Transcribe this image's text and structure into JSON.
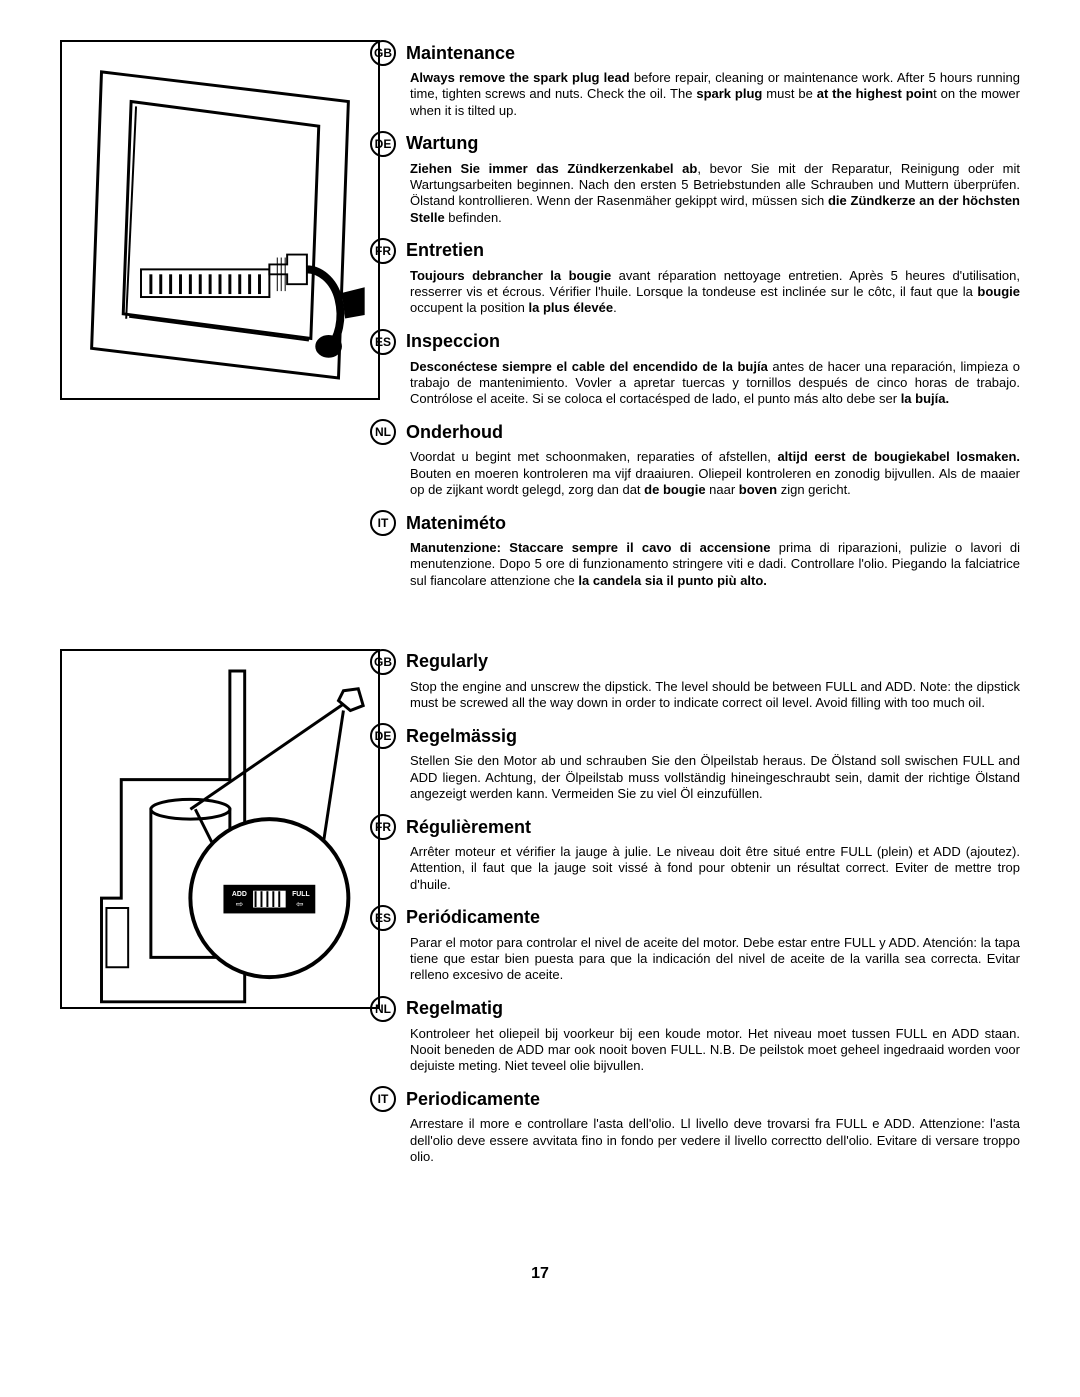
{
  "page_number": "17",
  "blocks": [
    {
      "figure": "sparkplug",
      "sections": [
        {
          "lang": "GB",
          "title": "Maintenance",
          "body": "<b>Always remove the spark plug lead</b> before repair, cleaning or maintenance work. After 5 hours running time, tighten screws and nuts. Check the oil. The <b>spark plug</b> must be <b>at the highest poin</b>t on the mower when it is tilted up."
        },
        {
          "lang": "DE",
          "title": "Wartung",
          "body": "<b>Ziehen Sie immer das Zündkerzenkabel ab</b>, bevor Sie mit der Reparatur, Reinigung oder mit Wartungsarbeiten beginnen. Nach den ersten 5 Betriebstunden alle Schrauben und Muttern überprüfen. Ölstand kontrollieren. Wenn der Rasenmäher gekippt wird, müssen sich <b>die Zündkerze an der höchsten Stelle</b> befinden."
        },
        {
          "lang": "FR",
          "title": "Entretien",
          "body": "<b>Toujours debrancher la bougie</b> avant réparation nettoyage entretien. Après 5 heures d'utilisation, resserrer vis et écrous. Vérifier l'huile. Lorsque la tondeuse est inclinée sur le côtc, il faut que la <b>bougie</b> occupent la position <b>la plus élevée</b>."
        },
        {
          "lang": "ES",
          "title": "Inspeccion",
          "body": "<b>Desconéctese siempre el cable del encendido de la bujía</b> antes de hacer una reparación, limpieza o trabajo de mantenimiento. Vovler a apretar tuercas y tornillos después de cinco horas de trabajo. Contrólose el aceite. Si se coloca el cortacésped de lado, el punto más alto debe ser <b>la bujía.</b>"
        },
        {
          "lang": "NL",
          "title": "Onderhoud",
          "body": "Voordat u begint met schoonmaken, reparaties of afstellen, <b>altijd eerst de bougiekabel losmaken.</b> Bouten en moeren kontroleren ma vijf draaiuren. Oliepeil kontroleren en zonodig bijvullen. Als de maaier op de zijkant wordt gelegd, zorg dan dat <b>de bougie</b> naar <b>boven</b> zign gericht."
        },
        {
          "lang": "IT",
          "title": "Mateniméto",
          "body": "<b>Manutenzione: Staccare sempre il cavo di accensione</b> prima di riparazioni, pulizie o lavori di menutenzione. Dopo 5 ore di funzionamento stringere viti e dadi. Controllare l'olio. Piegando la falciatrice sul fiancolare attenzione che <b>la candela sia il punto più alto.</b>"
        }
      ]
    },
    {
      "figure": "dipstick",
      "sections": [
        {
          "lang": "GB",
          "title": "Regularly",
          "body": "Stop the engine and unscrew the dipstick. The level should be between FULL and ADD. Note: the dipstick must be screwed all the way down in order to indicate correct oil level. Avoid filling with too much oil."
        },
        {
          "lang": "DE",
          "title": "Regelmässig",
          "body": "Stellen Sie den Motor ab und schrauben Sie den Ölpeilstab heraus. De Ölstand soll swischen FULL and ADD liegen. Achtung, der Ölpeilstab muss vollständig hineingeschraubt sein, damit der richtige Ölstand angezeigt werden kann. Vermeiden Sie zu viel Öl einzufüllen."
        },
        {
          "lang": "FR",
          "title": "Régulièrement",
          "body": "Arrêter moteur et vérifier la jauge à julie. Le niveau doit être situé entre FULL (plein) et ADD (ajoutez). Attention, il faut que la jauge soit vissé à fond pour obtenir un résultat correct. Eviter de mettre trop d'huile."
        },
        {
          "lang": "ES",
          "title": "Periódicamente",
          "body": "Parar el motor para controlar el nivel de aceite del motor. Debe estar entre FULL y ADD. Atención: la tapa tiene que estar bien puesta para que la indicación del nivel de aceite de la varilla sea correcta. Evitar relleno excesivo de aceite."
        },
        {
          "lang": "NL",
          "title": "Regelmatig",
          "body": "Kontroleer het oliepeil bij voorkeur bij een koude motor. Het niveau moet tussen FULL en ADD staan. Nooit beneden de ADD mar ook nooit boven FULL. N.B. De peilstok moet geheel ingedraaid worden voor dejuiste meting. Niet teveel olie bijvullen."
        },
        {
          "lang": "IT",
          "title": "Periodicamente",
          "body": "Arrestare il more e controllare l'asta dell'olio. Ll livello deve trovarsi fra FULL e ADD. Attenzione: l'asta dell'olio deve essere avvitata fino in fondo per vedere il livello correctto dell'olio. Evitare di versare troppo olio."
        }
      ]
    }
  ],
  "figures": {
    "sparkplug_svg": "<svg viewBox='0 0 320 360'><g stroke='#000' stroke-width='3' fill='none'><path d='M 40 30 L 290 60 L 280 340 L 30 310 Z'/><path d='M 70 60 L 260 85 L 252 300 L 62 275 Z'/><line x1='75' y1='65' x2='65' y2='280' stroke-width='2'/><line x1='68' y1='278' x2='250' y2='302' stroke-width='2'/><rect x='80' y='230' width='130' height='28' stroke-width='2' fill='#fff'/><line x1='90' y1='235' x2='90' y2='255'/><line x1='100' y1='235' x2='100' y2='255'/><line x1='110' y1='235' x2='110' y2='255'/><line x1='120' y1='235' x2='120' y2='255'/><line x1='130' y1='235' x2='130' y2='255'/><line x1='140' y1='235' x2='140' y2='255'/><line x1='150' y1='235' x2='150' y2='255'/><line x1='160' y1='235' x2='160' y2='255'/><line x1='170' y1='235' x2='170' y2='255'/><line x1='180' y1='235' x2='180' y2='255'/><line x1='190' y1='235' x2='190' y2='255'/><line x1='200' y1='235' x2='200' y2='255'/><path d='M 210 225 l 18 0 l 0 -10 l 20 0 l 0 30 l -20 0 l 0 -10 l -18 0 Z' fill='#fff' stroke-width='2'/><line x1='218' y1='218' x2='218' y2='252' stroke-width='1'/><line x1='222' y1='218' x2='222' y2='252' stroke-width='1'/><line x1='226' y1='218' x2='226' y2='252' stroke-width='1'/><path d='M 248 230 C 260 230 275 240 280 260 C 285 280 280 300 270 310' stroke-width='8' fill='none'/><ellipse cx='270' cy='308' rx='12' ry='10' fill='#000'/><polygon points='285,255 305,250 305,275 288,278' fill='#000'/></g></svg>",
    "dipstick_svg": "<svg viewBox='0 0 320 360'><g stroke='#000' stroke-width='3' fill='none'><path d='M 170 20 L 185 20 L 185 355 L 40 355 L 40 250 L 60 250 L 60 130 L 170 130 Z' fill='#fff'/><rect x='90' y='160' width='80' height='150' fill='#fff' stroke-width='3'/><ellipse cx='130' cy='160' rx='40' ry='10' fill='#fff'/><rect x='45' y='260' width='22' height='60' fill='#fff' stroke-width='2'/><line x1='130' y1='160' x2='290' y2='50' stroke-width='3'/><polygon points='285,40 300,38 305,55 292,60 280,50' fill='#fff' stroke-width='3'/><circle cx='210' cy='250' r='80' fill='#fff' stroke-width='4'/><line x1='152' y1='194' x2='135' y2='160' stroke-width='3'/><line x1='265' y1='192' x2='285' y2='60' stroke-width='3'/><rect x='165' y='238' width='90' height='26' fill='#000'/><rect x='192' y='241' width='36' height='20' fill='#fff'/><line x1='196' y1='243' x2='196' y2='259' stroke='#000' stroke-width='2'/><line x1='202' y1='243' x2='202' y2='259' stroke='#000' stroke-width='2'/><line x1='208' y1='243' x2='208' y2='259' stroke='#000' stroke-width='2'/><line x1='214' y1='243' x2='214' y2='259' stroke='#000' stroke-width='2'/><line x1='220' y1='243' x2='220' y2='259' stroke='#000' stroke-width='2'/></g><text x='172' y='248' font-size='7' fill='#fff' font-family='Arial' font-weight='bold'>ADD</text><text x='233' y='248' font-size='7' fill='#fff' font-family='Arial' font-weight='bold'>FULL</text><text x='176' y='259' font-size='9' fill='#fff'>⇨</text><text x='237' y='259' font-size='9' fill='#fff'>⇦</text></svg>"
  }
}
